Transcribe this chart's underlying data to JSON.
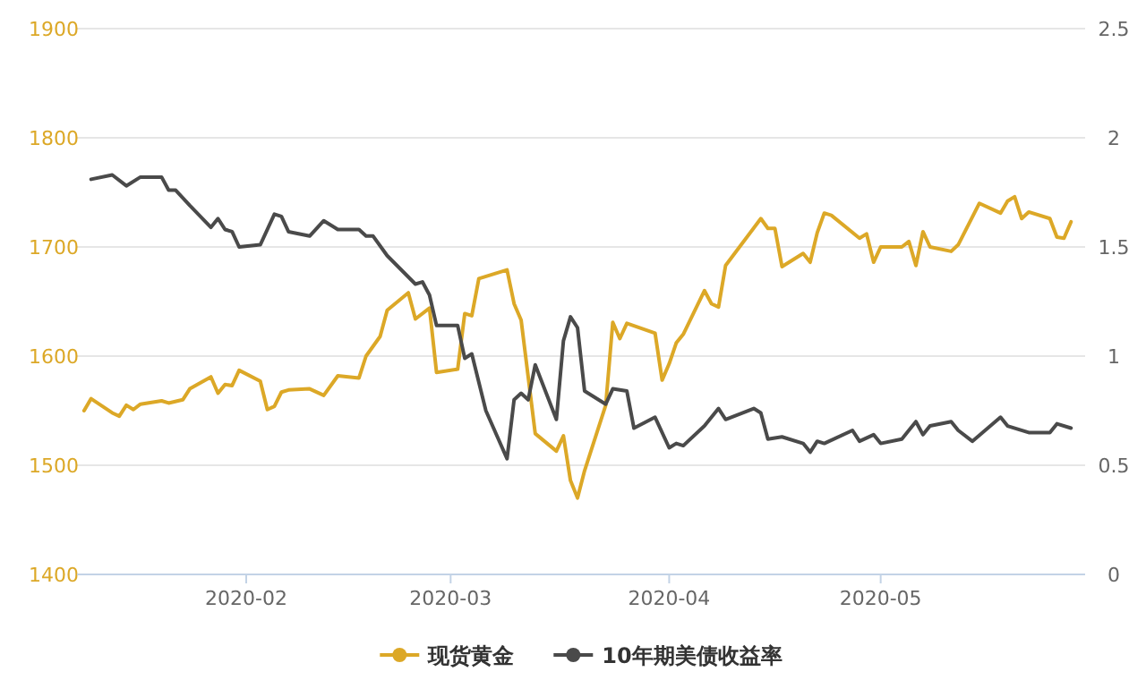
{
  "chart_data": {
    "type": "line",
    "xlim": [
      "2020-01-08",
      "2020-05-30"
    ],
    "xticks": [
      "2020-02",
      "2020-03",
      "2020-04",
      "2020-05"
    ],
    "ylim": [
      1400,
      1900
    ],
    "yticks": [
      1400,
      1500,
      1600,
      1700,
      1800,
      1900
    ],
    "y2lim": [
      0,
      2.5
    ],
    "y2ticks": [
      0,
      0.5,
      1,
      1.5,
      2,
      2.5
    ],
    "grid": "y",
    "legend": "bottom",
    "series": [
      {
        "name": "现货黄金",
        "color": "#dca827",
        "x": [
          "2020-01-09",
          "2020-01-10",
          "2020-01-13",
          "2020-01-14",
          "2020-01-15",
          "2020-01-16",
          "2020-01-17",
          "2020-01-20",
          "2020-01-21",
          "2020-01-23",
          "2020-01-24",
          "2020-01-27",
          "2020-01-28",
          "2020-01-29",
          "2020-01-30",
          "2020-01-31",
          "2020-02-03",
          "2020-02-04",
          "2020-02-05",
          "2020-02-06",
          "2020-02-07",
          "2020-02-10",
          "2020-02-12",
          "2020-02-14",
          "2020-02-17",
          "2020-02-18",
          "2020-02-20",
          "2020-02-21",
          "2020-02-24",
          "2020-02-25",
          "2020-02-27",
          "2020-02-28",
          "2020-03-02",
          "2020-03-03",
          "2020-03-04",
          "2020-03-05",
          "2020-03-09",
          "2020-03-10",
          "2020-03-11",
          "2020-03-13",
          "2020-03-16",
          "2020-03-17",
          "2020-03-18",
          "2020-03-19",
          "2020-03-20",
          "2020-03-23",
          "2020-03-24",
          "2020-03-25",
          "2020-03-26",
          "2020-03-30",
          "2020-03-31",
          "2020-04-01",
          "2020-04-02",
          "2020-04-03",
          "2020-04-06",
          "2020-04-07",
          "2020-04-08",
          "2020-04-09",
          "2020-04-14",
          "2020-04-15",
          "2020-04-16",
          "2020-04-17",
          "2020-04-20",
          "2020-04-21",
          "2020-04-22",
          "2020-04-23",
          "2020-04-24",
          "2020-04-28",
          "2020-04-29",
          "2020-04-30",
          "2020-05-01",
          "2020-05-04",
          "2020-05-05",
          "2020-05-06",
          "2020-05-07",
          "2020-05-08",
          "2020-05-11",
          "2020-05-12",
          "2020-05-15",
          "2020-05-18",
          "2020-05-19",
          "2020-05-20",
          "2020-05-21",
          "2020-05-22",
          "2020-05-25",
          "2020-05-26",
          "2020-05-27",
          "2020-05-28"
        ],
        "values": [
          1550,
          1561,
          1548,
          1545,
          1555,
          1551,
          1556,
          1559,
          1557,
          1560,
          1570,
          1581,
          1566,
          1574,
          1573,
          1587,
          1577,
          1551,
          1554,
          1567,
          1569,
          1570,
          1564,
          1582,
          1580,
          1600,
          1618,
          1642,
          1658,
          1634,
          1644,
          1585,
          1588,
          1639,
          1637,
          1671,
          1679,
          1648,
          1633,
          1529,
          1513,
          1527,
          1486,
          1470,
          1495,
          1555,
          1631,
          1616,
          1630,
          1621,
          1578,
          1593,
          1612,
          1620,
          1660,
          1648,
          1645,
          1683,
          1726,
          1717,
          1717,
          1682,
          1694,
          1686,
          1713,
          1731,
          1729,
          1708,
          1712,
          1686,
          1700,
          1700,
          1705,
          1683,
          1714,
          1700,
          1696,
          1702,
          1740,
          1731,
          1742,
          1746,
          1726,
          1732,
          1726,
          1709,
          1708,
          1723
        ]
      },
      {
        "name": "10年期美债收益率",
        "color": "#4a4a4a",
        "axis": "y2",
        "x": [
          "2020-01-10",
          "2020-01-13",
          "2020-01-15",
          "2020-01-17",
          "2020-01-20",
          "2020-01-21",
          "2020-01-22",
          "2020-01-24",
          "2020-01-27",
          "2020-01-28",
          "2020-01-29",
          "2020-01-30",
          "2020-01-31",
          "2020-02-03",
          "2020-02-05",
          "2020-02-06",
          "2020-02-07",
          "2020-02-10",
          "2020-02-12",
          "2020-02-14",
          "2020-02-17",
          "2020-02-18",
          "2020-02-19",
          "2020-02-21",
          "2020-02-25",
          "2020-02-26",
          "2020-02-27",
          "2020-02-28",
          "2020-03-02",
          "2020-03-03",
          "2020-03-04",
          "2020-03-06",
          "2020-03-09",
          "2020-03-10",
          "2020-03-11",
          "2020-03-12",
          "2020-03-13",
          "2020-03-16",
          "2020-03-17",
          "2020-03-18",
          "2020-03-19",
          "2020-03-20",
          "2020-03-23",
          "2020-03-24",
          "2020-03-26",
          "2020-03-27",
          "2020-03-30",
          "2020-04-01",
          "2020-04-02",
          "2020-04-03",
          "2020-04-06",
          "2020-04-08",
          "2020-04-09",
          "2020-04-13",
          "2020-04-14",
          "2020-04-15",
          "2020-04-17",
          "2020-04-20",
          "2020-04-21",
          "2020-04-22",
          "2020-04-23",
          "2020-04-27",
          "2020-04-28",
          "2020-04-30",
          "2020-05-01",
          "2020-05-04",
          "2020-05-06",
          "2020-05-07",
          "2020-05-08",
          "2020-05-11",
          "2020-05-12",
          "2020-05-14",
          "2020-05-18",
          "2020-05-19",
          "2020-05-22",
          "2020-05-25",
          "2020-05-26",
          "2020-05-28"
        ],
        "values": [
          1.81,
          1.83,
          1.78,
          1.82,
          1.82,
          1.76,
          1.76,
          1.69,
          1.59,
          1.63,
          1.58,
          1.57,
          1.5,
          1.51,
          1.65,
          1.64,
          1.57,
          1.55,
          1.62,
          1.58,
          1.58,
          1.55,
          1.55,
          1.46,
          1.33,
          1.34,
          1.28,
          1.14,
          1.14,
          0.99,
          1.01,
          0.75,
          0.53,
          0.8,
          0.83,
          0.8,
          0.96,
          0.71,
          1.07,
          1.18,
          1.13,
          0.84,
          0.78,
          0.85,
          0.84,
          0.67,
          0.72,
          0.58,
          0.6,
          0.59,
          0.68,
          0.76,
          0.71,
          0.76,
          0.74,
          0.62,
          0.63,
          0.6,
          0.56,
          0.61,
          0.6,
          0.66,
          0.61,
          0.64,
          0.6,
          0.62,
          0.7,
          0.64,
          0.68,
          0.7,
          0.66,
          0.61,
          0.72,
          0.68,
          0.65,
          0.65,
          0.69,
          0.67
        ]
      }
    ]
  }
}
